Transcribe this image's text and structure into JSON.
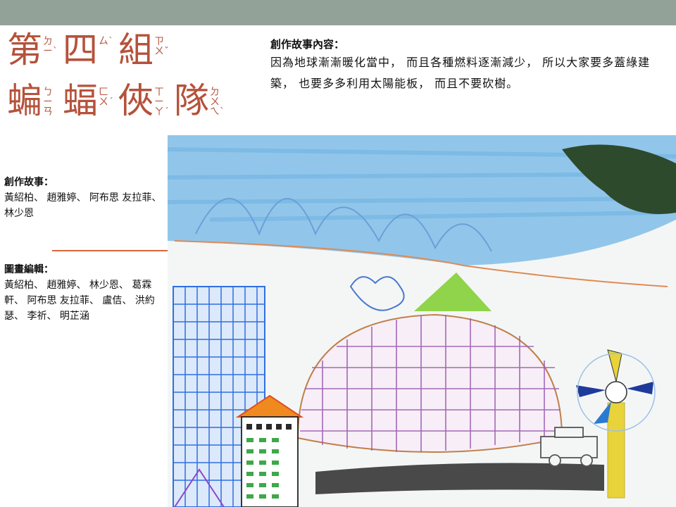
{
  "title": {
    "line1": [
      {
        "char": "第",
        "zhuyin": "ㄉㄧˋ"
      },
      {
        "char": "四",
        "zhuyin": "ㄙˋ"
      },
      {
        "char": "組",
        "zhuyin": "ㄗㄨˇ"
      }
    ],
    "line2": [
      {
        "char": "蝙",
        "zhuyin": "ㄅㄧㄢ"
      },
      {
        "char": "蝠",
        "zhuyin": "ㄈㄨˊ"
      },
      {
        "char": "俠",
        "zhuyin": "ㄒㄧㄚˊ"
      },
      {
        "char": "隊",
        "zhuyin": "ㄉㄨㄟˋ"
      }
    ]
  },
  "story": {
    "heading": "創作故事內容：",
    "body": "因為地球漸漸暖化當中， 而且各種燃料逐漸減少， 所以大家要多蓋綠建築， 也要多多利用太陽能板， 而且不要砍樹。"
  },
  "credits_story": {
    "heading": "創作故事：",
    "names": "黃紹柏、 趙雅婷、 阿布思 友拉菲、 林少恩"
  },
  "credits_art": {
    "heading": "圖畫編輯：",
    "names": "黃紹柏、 趙雅婷、 林少恩、 葛霖軒、 阿布思 友拉菲、 盧佶、 洪約瑟、 李祈、 明芷涵"
  },
  "colors": {
    "topbar": "#93a298",
    "title": "#b5523b",
    "divider": "#d9663a"
  }
}
